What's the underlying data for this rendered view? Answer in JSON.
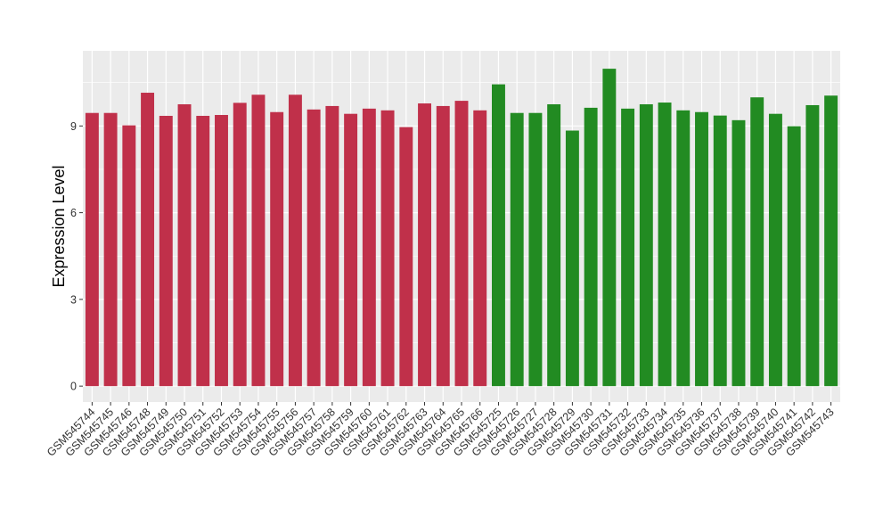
{
  "chart_data": {
    "type": "bar",
    "title": "",
    "xlabel": "",
    "ylabel": "Expression Level",
    "ylim": [
      -0.55,
      11.6
    ],
    "yticks": [
      0,
      3,
      6,
      9
    ],
    "grid": true,
    "legend": "none",
    "categories": [
      "GSM545744",
      "GSM545745",
      "GSM545746",
      "GSM545748",
      "GSM545749",
      "GSM545750",
      "GSM545751",
      "GSM545752",
      "GSM545753",
      "GSM545754",
      "GSM545755",
      "GSM545756",
      "GSM545757",
      "GSM545758",
      "GSM545759",
      "GSM545760",
      "GSM545761",
      "GSM545762",
      "GSM545763",
      "GSM545764",
      "GSM545765",
      "GSM545766",
      "GSM545725",
      "GSM545726",
      "GSM545727",
      "GSM545728",
      "GSM545729",
      "GSM545730",
      "GSM545731",
      "GSM545732",
      "GSM545733",
      "GSM545734",
      "GSM545735",
      "GSM545736",
      "GSM545737",
      "GSM545738",
      "GSM545739",
      "GSM545740",
      "GSM545741",
      "GSM545742",
      "GSM545743"
    ],
    "values": [
      9.45,
      9.45,
      9.02,
      10.15,
      9.35,
      9.75,
      9.35,
      9.38,
      9.8,
      10.08,
      9.48,
      10.08,
      9.57,
      9.69,
      9.42,
      9.6,
      9.54,
      8.96,
      9.78,
      9.69,
      9.87,
      9.54,
      10.44,
      9.45,
      9.45,
      9.75,
      8.84,
      9.63,
      10.98,
      9.6,
      9.75,
      9.81,
      9.54,
      9.48,
      9.36,
      9.2,
      9.99,
      9.42,
      8.99,
      9.72,
      10.05
    ],
    "group_sizes": [
      22,
      19
    ],
    "colors": [
      "#C0304A",
      "#228B22"
    ],
    "panel_color": "#EBEBEB",
    "grid_color": "#FFFFFF"
  }
}
